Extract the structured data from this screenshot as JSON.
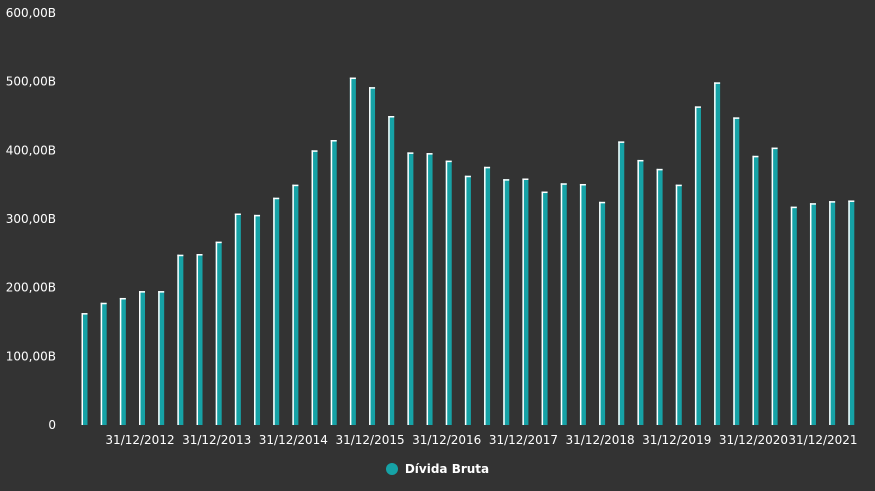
{
  "colors": {
    "background": "#333333",
    "bar_fill": "#16a2a6",
    "bar_highlight": "#ffffff",
    "text": "#ffffff"
  },
  "chart_data": {
    "type": "bar",
    "title": "",
    "xlabel": "",
    "ylabel": "",
    "ylim": [
      0,
      600
    ],
    "y_ticks": [
      0,
      100,
      200,
      300,
      400,
      500,
      600
    ],
    "y_tick_labels": [
      "0",
      "100,00B",
      "200,00B",
      "300,00B",
      "400,00B",
      "500,00B",
      "600,00B"
    ],
    "x_tick_labels": [
      {
        "label": "31/12/2012",
        "index": 3
      },
      {
        "label": "31/12/2013",
        "index": 7
      },
      {
        "label": "31/12/2014",
        "index": 11
      },
      {
        "label": "31/12/2015",
        "index": 15
      },
      {
        "label": "31/12/2016",
        "index": 19
      },
      {
        "label": "31/12/2017",
        "index": 23
      },
      {
        "label": "31/12/2018",
        "index": 27
      },
      {
        "label": "31/12/2019",
        "index": 31
      },
      {
        "label": "31/12/2020",
        "index": 35
      },
      {
        "label": "31/12/2021",
        "index": 39
      }
    ],
    "grid": false,
    "legend_position": "bottom-center",
    "series": [
      {
        "name": "Dívida Bruta",
        "values": [
          163,
          178,
          185,
          195,
          195,
          248,
          249,
          267,
          308,
          306,
          331,
          350,
          400,
          415,
          506,
          492,
          450,
          397,
          396,
          385,
          363,
          376,
          358,
          359,
          340,
          352,
          351,
          325,
          413,
          386,
          373,
          350,
          464,
          499,
          448,
          392,
          404,
          318,
          323,
          326,
          327
        ]
      }
    ]
  },
  "legend": {
    "label": "Dívida Bruta"
  }
}
